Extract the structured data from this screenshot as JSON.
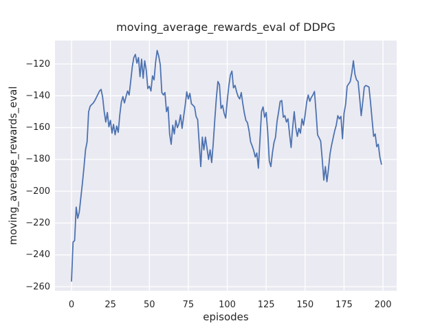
{
  "chart_data": {
    "type": "line",
    "title": "moving_average_rewards_eval of DDPG",
    "xlabel": "episodes",
    "ylabel": "moving_average_rewards_eval",
    "xlim": [
      -10.6,
      208.8
    ],
    "ylim": [
      -262.6,
      -105.3
    ],
    "x_ticks": [
      0,
      25,
      50,
      75,
      100,
      125,
      150,
      175,
      200
    ],
    "y_ticks": [
      -260,
      -240,
      -220,
      -200,
      -180,
      -160,
      -140,
      -120
    ],
    "grid": true,
    "legend": "none",
    "colors": {
      "line": "#4c72b0",
      "axes_background": "#eaeaf2",
      "grid": "#ffffff",
      "figure_background": "#ffffff",
      "text": "#262626"
    },
    "series": [
      {
        "name": "moving_average_rewards_eval",
        "x_start": 0,
        "x_step": 1,
        "values": [
          -256.5,
          -232,
          -231,
          -210,
          -217,
          -213,
          -204,
          -195,
          -185,
          -174,
          -169,
          -150,
          -146.5,
          -145.5,
          -144.5,
          -143,
          -141,
          -139,
          -137,
          -136,
          -141,
          -150,
          -156.5,
          -150.5,
          -159.5,
          -155.5,
          -163.5,
          -158,
          -164.5,
          -159,
          -163,
          -152,
          -144,
          -140.5,
          -144.5,
          -140.5,
          -137,
          -139.5,
          -131,
          -122,
          -116,
          -114,
          -119.5,
          -116,
          -128,
          -117,
          -129,
          -118,
          -124,
          -135.5,
          -134,
          -137,
          -127.5,
          -130,
          -119,
          -111.5,
          -115,
          -120.5,
          -138,
          -139.5,
          -138,
          -150,
          -147,
          -164,
          -170.5,
          -158.5,
          -164,
          -155.5,
          -160,
          -157.5,
          -152,
          -160.5,
          -153,
          -146,
          -137.5,
          -142,
          -138.5,
          -145,
          -146,
          -147,
          -153,
          -155,
          -170,
          -184.5,
          -166,
          -174,
          -166,
          -173,
          -180,
          -174,
          -182,
          -170,
          -155,
          -141.5,
          -131,
          -133,
          -148,
          -146,
          -151,
          -154,
          -143,
          -134,
          -127,
          -124.5,
          -135,
          -133.5,
          -137.5,
          -140.5,
          -142,
          -138,
          -145,
          -151,
          -155.5,
          -157,
          -162,
          -169,
          -171.5,
          -174.5,
          -178.5,
          -176,
          -185.5,
          -168,
          -150,
          -147,
          -153.5,
          -150.5,
          -163,
          -181,
          -184.5,
          -176,
          -169.5,
          -166,
          -156,
          -150,
          -143.5,
          -143,
          -153.5,
          -152.5,
          -156.5,
          -154.5,
          -164,
          -172.5,
          -160,
          -150,
          -160,
          -165.5,
          -160.5,
          -163.5,
          -154.5,
          -158.5,
          -152,
          -144,
          -139.5,
          -143.5,
          -141,
          -139.5,
          -137.3,
          -150,
          -164.5,
          -166.5,
          -168.5,
          -180,
          -193,
          -184.5,
          -194,
          -186,
          -176.5,
          -171,
          -166.5,
          -162,
          -158.5,
          -152.5,
          -154.5,
          -153,
          -167,
          -151,
          -145.5,
          -134,
          -132.5,
          -131,
          -125.5,
          -118,
          -126.5,
          -130,
          -131,
          -141,
          -152.5,
          -144,
          -134.5,
          -133.5,
          -134,
          -134.5,
          -144,
          -155,
          -165.5,
          -164,
          -172,
          -170.5,
          -178.5,
          -183
        ]
      }
    ]
  }
}
